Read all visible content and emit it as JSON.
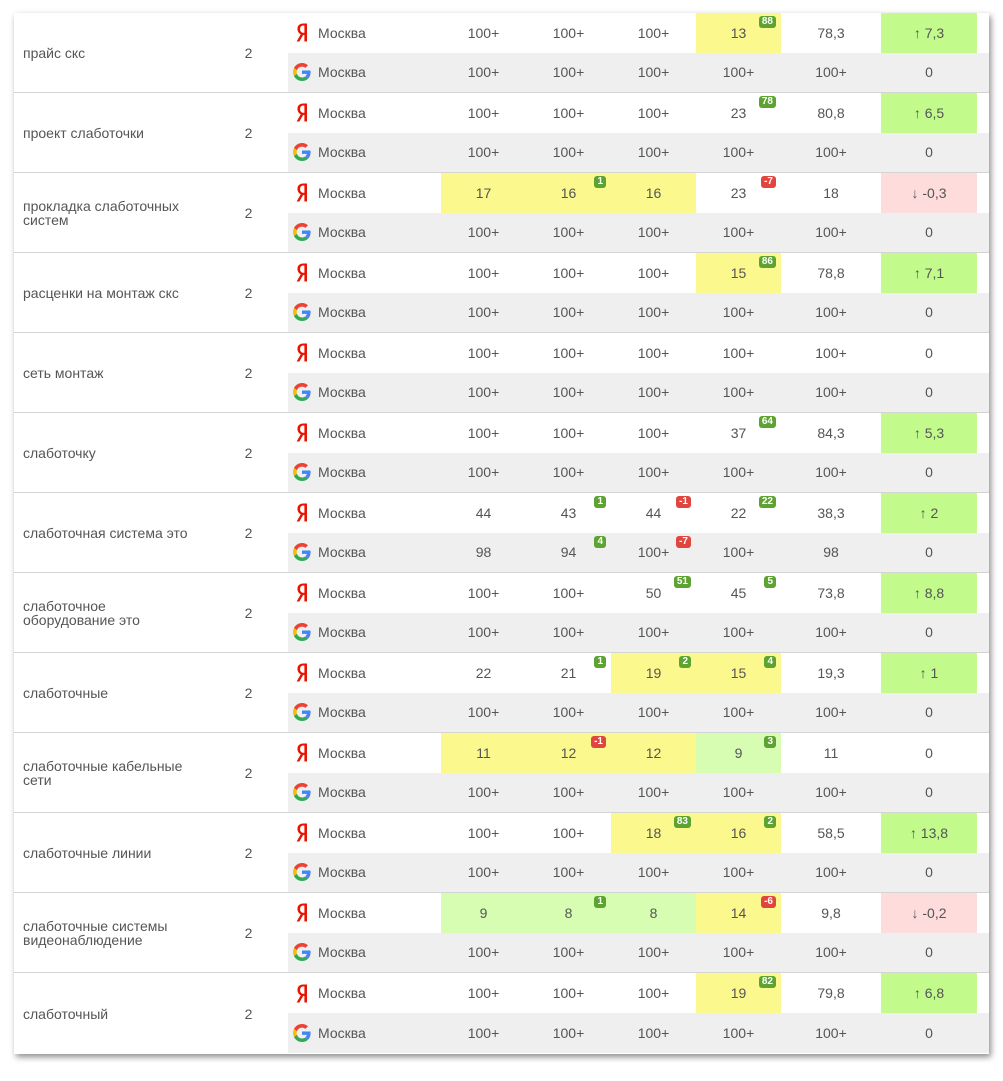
{
  "colors": {
    "yellow": "#fbf88d",
    "green_cell": "#d7fdb3",
    "trend_up": "#c2fa8c",
    "trend_down": "#fedcdc",
    "badge_pos": "#5ca332",
    "badge_neg": "#e0463f"
  },
  "groups": [
    {
      "keyword": "прайс скс",
      "count": "2",
      "yandex": {
        "region": "Москва",
        "cells": [
          {
            "v": "100+"
          },
          {
            "v": "100+"
          },
          {
            "v": "100+"
          },
          {
            "v": "13",
            "hl": "y",
            "badge": "88",
            "bt": "pos"
          }
        ],
        "avg": "78,3",
        "trend": "↑ 7,3",
        "trend_type": "up"
      },
      "google": {
        "region": "Москва",
        "cells": [
          {
            "v": "100+"
          },
          {
            "v": "100+"
          },
          {
            "v": "100+"
          },
          {
            "v": "100+"
          }
        ],
        "avg": "100+",
        "trend": "0",
        "trend_type": ""
      }
    },
    {
      "keyword": "проект слаботочки",
      "count": "2",
      "yandex": {
        "region": "Москва",
        "cells": [
          {
            "v": "100+"
          },
          {
            "v": "100+"
          },
          {
            "v": "100+"
          },
          {
            "v": "23",
            "badge": "78",
            "bt": "pos"
          }
        ],
        "avg": "80,8",
        "trend": "↑ 6,5",
        "trend_type": "up"
      },
      "google": {
        "region": "Москва",
        "cells": [
          {
            "v": "100+"
          },
          {
            "v": "100+"
          },
          {
            "v": "100+"
          },
          {
            "v": "100+"
          }
        ],
        "avg": "100+",
        "trend": "0",
        "trend_type": ""
      }
    },
    {
      "keyword": "прокладка слаботочных систем",
      "count": "2",
      "yandex": {
        "region": "Москва",
        "cells": [
          {
            "v": "17",
            "hl": "y"
          },
          {
            "v": "16",
            "hl": "y",
            "badge": "1",
            "bt": "pos"
          },
          {
            "v": "16",
            "hl": "y"
          },
          {
            "v": "23",
            "badge": "-7",
            "bt": "neg"
          }
        ],
        "avg": "18",
        "trend": "↓ -0,3",
        "trend_type": "down"
      },
      "google": {
        "region": "Москва",
        "cells": [
          {
            "v": "100+"
          },
          {
            "v": "100+"
          },
          {
            "v": "100+"
          },
          {
            "v": "100+"
          }
        ],
        "avg": "100+",
        "trend": "0",
        "trend_type": ""
      }
    },
    {
      "keyword": "расценки на монтаж скс",
      "count": "2",
      "yandex": {
        "region": "Москва",
        "cells": [
          {
            "v": "100+"
          },
          {
            "v": "100+"
          },
          {
            "v": "100+"
          },
          {
            "v": "15",
            "hl": "y",
            "badge": "86",
            "bt": "pos"
          }
        ],
        "avg": "78,8",
        "trend": "↑ 7,1",
        "trend_type": "up"
      },
      "google": {
        "region": "Москва",
        "cells": [
          {
            "v": "100+"
          },
          {
            "v": "100+"
          },
          {
            "v": "100+"
          },
          {
            "v": "100+"
          }
        ],
        "avg": "100+",
        "trend": "0",
        "trend_type": ""
      }
    },
    {
      "keyword": "сеть монтаж",
      "count": "2",
      "yandex": {
        "region": "Москва",
        "cells": [
          {
            "v": "100+"
          },
          {
            "v": "100+"
          },
          {
            "v": "100+"
          },
          {
            "v": "100+"
          }
        ],
        "avg": "100+",
        "trend": "0",
        "trend_type": ""
      },
      "google": {
        "region": "Москва",
        "cells": [
          {
            "v": "100+"
          },
          {
            "v": "100+"
          },
          {
            "v": "100+"
          },
          {
            "v": "100+"
          }
        ],
        "avg": "100+",
        "trend": "0",
        "trend_type": ""
      }
    },
    {
      "keyword": "слаботочку",
      "count": "2",
      "yandex": {
        "region": "Москва",
        "cells": [
          {
            "v": "100+"
          },
          {
            "v": "100+"
          },
          {
            "v": "100+"
          },
          {
            "v": "37",
            "badge": "64",
            "bt": "pos"
          }
        ],
        "avg": "84,3",
        "trend": "↑ 5,3",
        "trend_type": "up"
      },
      "google": {
        "region": "Москва",
        "cells": [
          {
            "v": "100+"
          },
          {
            "v": "100+"
          },
          {
            "v": "100+"
          },
          {
            "v": "100+"
          }
        ],
        "avg": "100+",
        "trend": "0",
        "trend_type": ""
      }
    },
    {
      "keyword": "слаботочная система это",
      "count": "2",
      "yandex": {
        "region": "Москва",
        "cells": [
          {
            "v": "44"
          },
          {
            "v": "43",
            "badge": "1",
            "bt": "pos"
          },
          {
            "v": "44",
            "badge": "-1",
            "bt": "neg"
          },
          {
            "v": "22",
            "badge": "22",
            "bt": "pos"
          }
        ],
        "avg": "38,3",
        "trend": "↑ 2",
        "trend_type": "up"
      },
      "google": {
        "region": "Москва",
        "cells": [
          {
            "v": "98"
          },
          {
            "v": "94",
            "badge": "4",
            "bt": "pos"
          },
          {
            "v": "100+",
            "badge": "-7",
            "bt": "neg"
          },
          {
            "v": "100+"
          }
        ],
        "avg": "98",
        "trend": "0",
        "trend_type": ""
      }
    },
    {
      "keyword": "слаботочное оборудование это",
      "count": "2",
      "yandex": {
        "region": "Москва",
        "cells": [
          {
            "v": "100+"
          },
          {
            "v": "100+"
          },
          {
            "v": "50",
            "badge": "51",
            "bt": "pos"
          },
          {
            "v": "45",
            "badge": "5",
            "bt": "pos"
          }
        ],
        "avg": "73,8",
        "trend": "↑ 8,8",
        "trend_type": "up"
      },
      "google": {
        "region": "Москва",
        "cells": [
          {
            "v": "100+"
          },
          {
            "v": "100+"
          },
          {
            "v": "100+"
          },
          {
            "v": "100+"
          }
        ],
        "avg": "100+",
        "trend": "0",
        "trend_type": ""
      }
    },
    {
      "keyword": "слаботочные",
      "count": "2",
      "yandex": {
        "region": "Москва",
        "cells": [
          {
            "v": "22"
          },
          {
            "v": "21",
            "badge": "1",
            "bt": "pos"
          },
          {
            "v": "19",
            "hl": "y",
            "badge": "2",
            "bt": "pos"
          },
          {
            "v": "15",
            "hl": "y",
            "badge": "4",
            "bt": "pos"
          }
        ],
        "avg": "19,3",
        "trend": "↑ 1",
        "trend_type": "up"
      },
      "google": {
        "region": "Москва",
        "cells": [
          {
            "v": "100+"
          },
          {
            "v": "100+"
          },
          {
            "v": "100+"
          },
          {
            "v": "100+"
          }
        ],
        "avg": "100+",
        "trend": "0",
        "trend_type": ""
      }
    },
    {
      "keyword": "слаботочные кабельные сети",
      "count": "2",
      "yandex": {
        "region": "Москва",
        "cells": [
          {
            "v": "11",
            "hl": "y"
          },
          {
            "v": "12",
            "hl": "y",
            "badge": "-1",
            "bt": "neg"
          },
          {
            "v": "12",
            "hl": "y"
          },
          {
            "v": "9",
            "hl": "g",
            "badge": "3",
            "bt": "pos"
          }
        ],
        "avg": "11",
        "trend": "0",
        "trend_type": ""
      },
      "google": {
        "region": "Москва",
        "cells": [
          {
            "v": "100+"
          },
          {
            "v": "100+"
          },
          {
            "v": "100+"
          },
          {
            "v": "100+"
          }
        ],
        "avg": "100+",
        "trend": "0",
        "trend_type": ""
      }
    },
    {
      "keyword": "слаботочные линии",
      "count": "2",
      "yandex": {
        "region": "Москва",
        "cells": [
          {
            "v": "100+"
          },
          {
            "v": "100+"
          },
          {
            "v": "18",
            "hl": "y",
            "badge": "83",
            "bt": "pos"
          },
          {
            "v": "16",
            "hl": "y",
            "badge": "2",
            "bt": "pos"
          }
        ],
        "avg": "58,5",
        "trend": "↑ 13,8",
        "trend_type": "up"
      },
      "google": {
        "region": "Москва",
        "cells": [
          {
            "v": "100+"
          },
          {
            "v": "100+"
          },
          {
            "v": "100+"
          },
          {
            "v": "100+"
          }
        ],
        "avg": "100+",
        "trend": "0",
        "trend_type": ""
      }
    },
    {
      "keyword": "слаботочные системы видеонаблюдение",
      "count": "2",
      "yandex": {
        "region": "Москва",
        "cells": [
          {
            "v": "9",
            "hl": "g"
          },
          {
            "v": "8",
            "hl": "g",
            "badge": "1",
            "bt": "pos"
          },
          {
            "v": "8",
            "hl": "g"
          },
          {
            "v": "14",
            "hl": "y",
            "badge": "-6",
            "bt": "neg"
          }
        ],
        "avg": "9,8",
        "trend": "↓ -0,2",
        "trend_type": "down"
      },
      "google": {
        "region": "Москва",
        "cells": [
          {
            "v": "100+"
          },
          {
            "v": "100+"
          },
          {
            "v": "100+"
          },
          {
            "v": "100+"
          }
        ],
        "avg": "100+",
        "trend": "0",
        "trend_type": ""
      }
    },
    {
      "keyword": "слаботочный",
      "count": "2",
      "yandex": {
        "region": "Москва",
        "cells": [
          {
            "v": "100+"
          },
          {
            "v": "100+"
          },
          {
            "v": "100+"
          },
          {
            "v": "19",
            "hl": "y",
            "badge": "82",
            "bt": "pos"
          }
        ],
        "avg": "79,8",
        "trend": "↑ 6,8",
        "trend_type": "up"
      },
      "google": {
        "region": "Москва",
        "cells": [
          {
            "v": "100+"
          },
          {
            "v": "100+"
          },
          {
            "v": "100+"
          },
          {
            "v": "100+"
          }
        ],
        "avg": "100+",
        "trend": "0",
        "trend_type": ""
      }
    }
  ]
}
